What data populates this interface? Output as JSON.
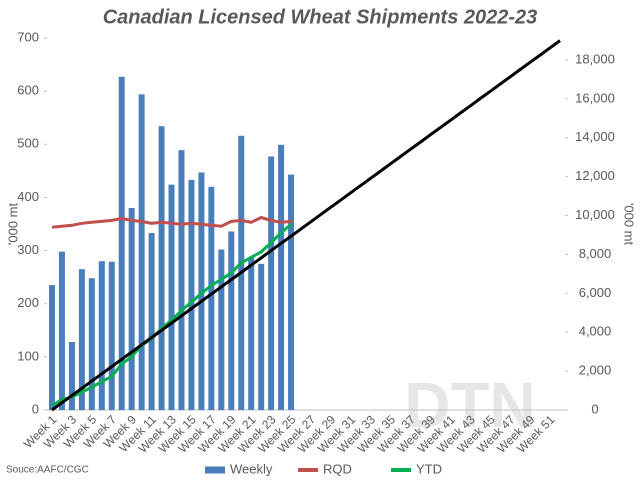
{
  "chart_data": {
    "type": "bar",
    "title": "Canadian Licensed Wheat Shipments 2022-23",
    "ylabel": "'000 mt",
    "y2label": "'000 mt",
    "source": "Souce:AAFC/CGC",
    "watermark": "DTN",
    "categories": [
      "Week 1",
      null,
      "Week 3",
      null,
      "Week 5",
      null,
      "Week 7",
      null,
      "Week 9",
      null,
      "Week 11",
      null,
      "Week 13",
      null,
      "Week 15",
      null,
      "Week 17",
      null,
      "Week 19",
      null,
      "Week 21",
      null,
      "Week 23",
      null,
      "Week 25",
      null,
      "Week 27",
      null,
      "Week 29",
      null,
      "Week 31",
      null,
      "Week 33",
      null,
      "Week 35",
      null,
      "Week 37",
      null,
      "Week 39",
      null,
      "Week 41",
      null,
      "Week 43",
      null,
      "Week 45",
      null,
      "Week 47",
      null,
      "Week 49",
      null,
      "Week 51",
      null
    ],
    "series": [
      {
        "name": "Weekly",
        "type": "bar",
        "color": "#4a7ebb",
        "values": [
          235,
          298,
          128,
          265,
          248,
          280,
          279,
          627,
          380,
          594,
          333,
          534,
          424,
          489,
          433,
          447,
          420,
          302,
          336,
          516,
          287,
          275,
          477,
          499,
          443,
          null,
          null,
          null,
          null,
          null,
          null,
          null,
          null,
          null,
          null,
          null,
          null,
          null,
          null,
          null,
          null,
          null,
          null,
          null,
          null,
          null,
          null,
          null,
          null,
          null,
          null,
          null
        ]
      },
      {
        "name": "RQD",
        "type": "line",
        "axis": "y2",
        "color": "#c0504d",
        "values": [
          9400,
          9450,
          9500,
          9600,
          9650,
          9700,
          9750,
          9850,
          9750,
          9700,
          9600,
          9650,
          9600,
          9550,
          9600,
          9550,
          9500,
          9450,
          9700,
          9750,
          9650,
          9900,
          9750,
          9650,
          9700,
          null,
          null,
          null,
          null,
          null,
          null,
          null,
          null,
          null,
          null,
          null,
          null,
          null,
          null,
          null,
          null,
          null,
          null,
          null,
          null,
          null,
          null,
          null,
          null,
          null,
          null,
          null
        ]
      },
      {
        "name": "YTD",
        "type": "line",
        "axis": "y2",
        "color": "#00b050",
        "values": [
          235,
          533,
          661,
          926,
          1174,
          1454,
          1733,
          2360,
          2740,
          3334,
          3667,
          4201,
          4625,
          5114,
          5547,
          5994,
          6414,
          6716,
          7052,
          7568,
          7855,
          8130,
          8607,
          9106,
          9549,
          null,
          null,
          null,
          null,
          null,
          null,
          null,
          null,
          null,
          null,
          null,
          null,
          null,
          null,
          null,
          null,
          null,
          null,
          null,
          null,
          null,
          null,
          null,
          null,
          null,
          null,
          null
        ]
      },
      {
        "type": "line",
        "axis": "y2",
        "color": "#000000",
        "values": [
          0,
          373,
          745,
          1118,
          1490,
          1863,
          2235,
          2608,
          2980,
          3353,
          3725,
          4098,
          4470,
          4843,
          5215,
          5588,
          5960,
          6333,
          6705,
          7078,
          7450,
          7823,
          8195,
          8568,
          8940,
          9313,
          9685,
          10058,
          10430,
          10803,
          11175,
          11548,
          11920,
          12293,
          12665,
          13038,
          13410,
          13783,
          14155,
          14528,
          14900,
          15273,
          15645,
          16018,
          16390,
          16763,
          17135,
          17508,
          17880,
          18253,
          18625,
          18998
        ]
      }
    ],
    "ylim": [
      0,
      700
    ],
    "yticks": [
      0,
      100,
      200,
      300,
      400,
      500,
      600,
      700
    ],
    "y2lim": [
      0,
      19130
    ],
    "y2ticks": [
      0,
      {
        "value": 2000,
        "label": "2,000"
      },
      {
        "value": 4000,
        "label": "4,000"
      },
      {
        "value": 6000,
        "label": "6,000"
      },
      {
        "value": 8000,
        "label": "8,000"
      },
      {
        "value": 10000,
        "label": "10,000"
      },
      {
        "value": 12000,
        "label": "12,000"
      },
      {
        "value": 14000,
        "label": "14,000"
      },
      {
        "value": 16000,
        "label": "16,000"
      },
      {
        "value": 18000,
        "label": "18,000"
      }
    ],
    "grid": false,
    "legend": "bottom"
  }
}
